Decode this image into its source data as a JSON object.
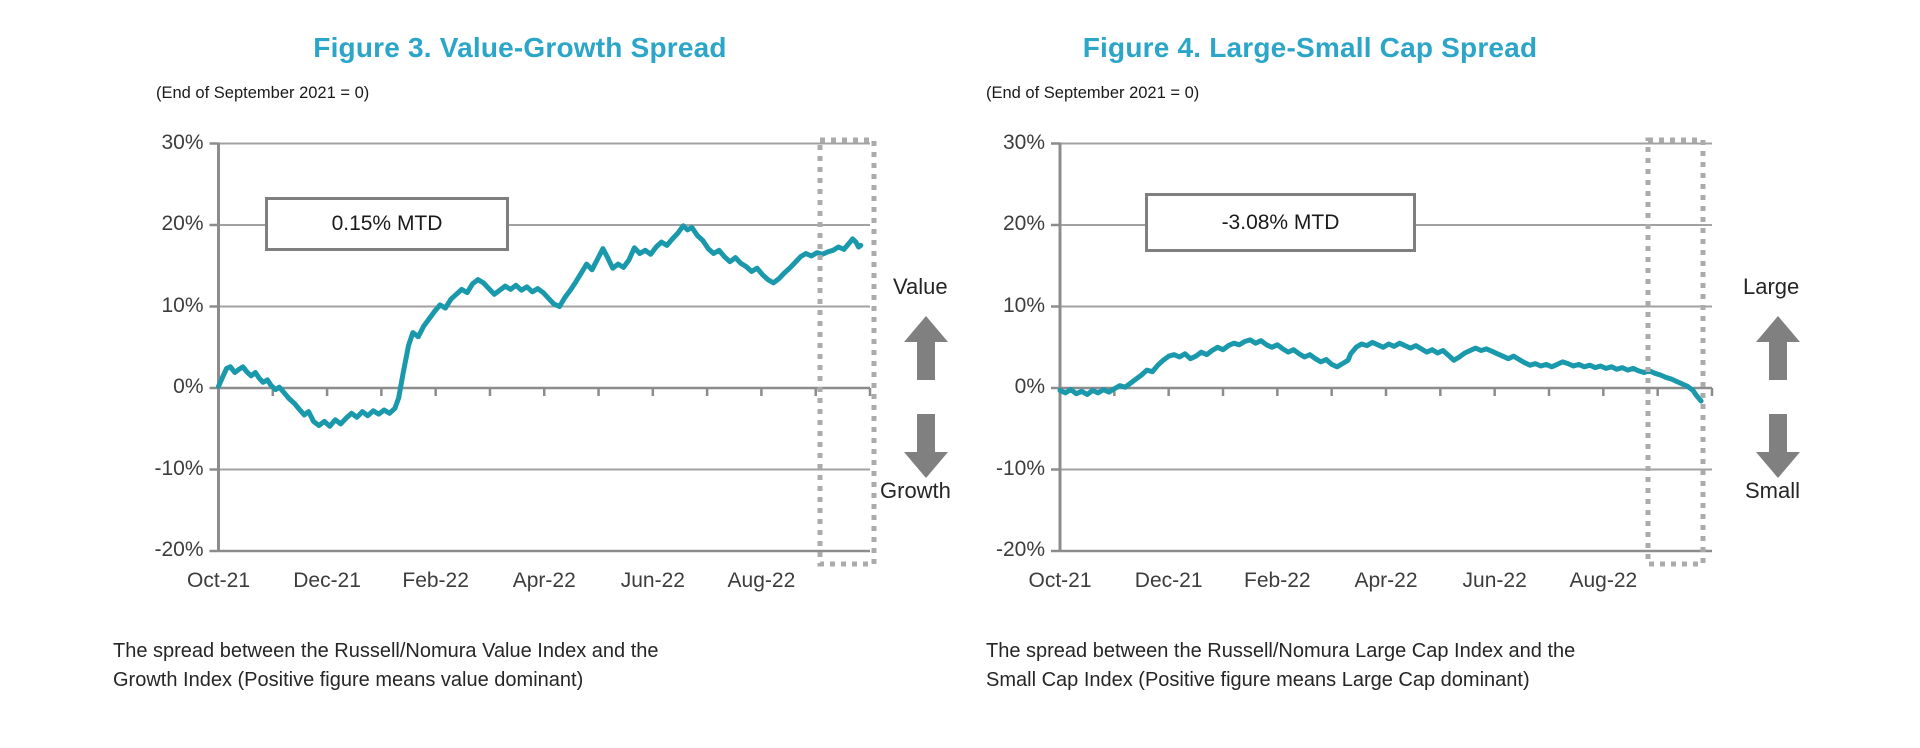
{
  "colors": {
    "title_teal": "#2BA5C8",
    "line_teal": "#1A98AC",
    "grid_gray": "#A2A2A2",
    "axis_gray": "#8C8C8C",
    "annotation_border_gray": "#7F7F7F",
    "dashed_box_gray": "#ABABAB",
    "arrow_gray": "#808080"
  },
  "chart_data": [
    {
      "type": "line",
      "title": "Figure 3. Value-Growth Spread",
      "subtitle": "(End of September 2021 = 0)",
      "annotation": "0.15% MTD",
      "direction_labels": {
        "up": "Value",
        "down": "Growth"
      },
      "caption_line1": "The spread between the Russell/Nomura Value Index and the",
      "caption_line2": "Growth Index (Positive figure means value dominant)",
      "x_tick_labels": [
        "Oct-21",
        "Dec-21",
        "Feb-22",
        "Apr-22",
        "Jun-22",
        "Aug-22"
      ],
      "x_tick_months": [
        0,
        2,
        4,
        6,
        8,
        10
      ],
      "y_tick_labels": [
        "30%",
        "20%",
        "10%",
        "0%",
        "-10%",
        "-20%"
      ],
      "y_tick_values": [
        30,
        20,
        10,
        0,
        -10,
        -20
      ],
      "ylim": [
        -20,
        30
      ],
      "x_range_months": [
        0,
        12
      ],
      "grid": "horizontal",
      "highlight_last_month_box": true,
      "series": [
        {
          "name": "Value-Growth spread (%)",
          "points": [
            [
              0,
              0.2
            ],
            [
              0.08,
              1.4
            ],
            [
              0.15,
              2.4
            ],
            [
              0.22,
              2.6
            ],
            [
              0.3,
              1.9
            ],
            [
              0.38,
              2.3
            ],
            [
              0.45,
              2.6
            ],
            [
              0.52,
              2.0
            ],
            [
              0.6,
              1.5
            ],
            [
              0.68,
              1.9
            ],
            [
              0.75,
              1.2
            ],
            [
              0.82,
              0.7
            ],
            [
              0.9,
              1.0
            ],
            [
              0.97,
              0.3
            ],
            [
              1.05,
              -0.2
            ],
            [
              1.12,
              0.1
            ],
            [
              1.2,
              -0.5
            ],
            [
              1.3,
              -1.3
            ],
            [
              1.4,
              -1.9
            ],
            [
              1.5,
              -2.7
            ],
            [
              1.58,
              -3.3
            ],
            [
              1.66,
              -2.9
            ],
            [
              1.75,
              -4.1
            ],
            [
              1.85,
              -4.6
            ],
            [
              1.95,
              -4.1
            ],
            [
              2.05,
              -4.7
            ],
            [
              2.15,
              -3.9
            ],
            [
              2.25,
              -4.4
            ],
            [
              2.35,
              -3.7
            ],
            [
              2.45,
              -3.1
            ],
            [
              2.55,
              -3.6
            ],
            [
              2.65,
              -2.9
            ],
            [
              2.75,
              -3.4
            ],
            [
              2.85,
              -2.8
            ],
            [
              2.95,
              -3.2
            ],
            [
              3.05,
              -2.7
            ],
            [
              3.15,
              -3.1
            ],
            [
              3.25,
              -2.5
            ],
            [
              3.32,
              -1.2
            ],
            [
              3.4,
              1.8
            ],
            [
              3.5,
              5.2
            ],
            [
              3.58,
              6.8
            ],
            [
              3.68,
              6.3
            ],
            [
              3.78,
              7.6
            ],
            [
              3.88,
              8.5
            ],
            [
              3.98,
              9.4
            ],
            [
              4.08,
              10.2
            ],
            [
              4.18,
              9.8
            ],
            [
              4.28,
              10.9
            ],
            [
              4.38,
              11.5
            ],
            [
              4.48,
              12.1
            ],
            [
              4.58,
              11.7
            ],
            [
              4.68,
              12.8
            ],
            [
              4.78,
              13.3
            ],
            [
              4.88,
              12.9
            ],
            [
              4.98,
              12.2
            ],
            [
              5.08,
              11.5
            ],
            [
              5.18,
              12.0
            ],
            [
              5.28,
              12.5
            ],
            [
              5.38,
              12.1
            ],
            [
              5.48,
              12.6
            ],
            [
              5.58,
              12.0
            ],
            [
              5.68,
              12.4
            ],
            [
              5.78,
              11.8
            ],
            [
              5.88,
              12.2
            ],
            [
              5.98,
              11.7
            ],
            [
              6.08,
              11.0
            ],
            [
              6.18,
              10.3
            ],
            [
              6.28,
              10.0
            ],
            [
              6.38,
              11.1
            ],
            [
              6.48,
              12.0
            ],
            [
              6.58,
              13.0
            ],
            [
              6.68,
              14.1
            ],
            [
              6.78,
              15.2
            ],
            [
              6.88,
              14.5
            ],
            [
              6.98,
              15.8
            ],
            [
              7.08,
              17.1
            ],
            [
              7.16,
              16.1
            ],
            [
              7.26,
              14.7
            ],
            [
              7.36,
              15.2
            ],
            [
              7.46,
              14.8
            ],
            [
              7.56,
              15.7
            ],
            [
              7.66,
              17.2
            ],
            [
              7.76,
              16.5
            ],
            [
              7.86,
              16.9
            ],
            [
              7.96,
              16.4
            ],
            [
              8.06,
              17.3
            ],
            [
              8.16,
              17.9
            ],
            [
              8.26,
              17.5
            ],
            [
              8.36,
              18.3
            ],
            [
              8.46,
              19.0
            ],
            [
              8.56,
              19.9
            ],
            [
              8.64,
              19.4
            ],
            [
              8.72,
              19.7
            ],
            [
              8.82,
              18.7
            ],
            [
              8.92,
              18.1
            ],
            [
              9.02,
              17.1
            ],
            [
              9.12,
              16.5
            ],
            [
              9.22,
              16.9
            ],
            [
              9.32,
              16.1
            ],
            [
              9.42,
              15.5
            ],
            [
              9.52,
              16.0
            ],
            [
              9.62,
              15.3
            ],
            [
              9.72,
              14.9
            ],
            [
              9.82,
              14.3
            ],
            [
              9.92,
              14.7
            ],
            [
              10.02,
              13.9
            ],
            [
              10.12,
              13.3
            ],
            [
              10.22,
              12.9
            ],
            [
              10.32,
              13.4
            ],
            [
              10.42,
              14.1
            ],
            [
              10.52,
              14.7
            ],
            [
              10.62,
              15.4
            ],
            [
              10.72,
              16.1
            ],
            [
              10.82,
              16.5
            ],
            [
              10.92,
              16.2
            ],
            [
              11.02,
              16.6
            ],
            [
              11.12,
              16.4
            ],
            [
              11.22,
              16.7
            ],
            [
              11.32,
              16.9
            ],
            [
              11.42,
              17.3
            ],
            [
              11.52,
              17.0
            ],
            [
              11.62,
              17.8
            ],
            [
              11.68,
              18.3
            ],
            [
              11.74,
              17.9
            ],
            [
              11.79,
              17.3
            ],
            [
              11.83,
              17.5
            ]
          ]
        }
      ]
    },
    {
      "type": "line",
      "title": "Figure 4. Large-Small Cap Spread",
      "subtitle": "(End of September 2021 = 0)",
      "annotation": "-3.08% MTD",
      "direction_labels": {
        "up": "Large",
        "down": "Small"
      },
      "caption_line1": "The spread between the Russell/Nomura Large Cap Index and the",
      "caption_line2": "Small Cap Index (Positive figure means Large Cap dominant)",
      "x_tick_labels": [
        "Oct-21",
        "Dec-21",
        "Feb-22",
        "Apr-22",
        "Jun-22",
        "Aug-22"
      ],
      "x_tick_months": [
        0,
        2,
        4,
        6,
        8,
        10
      ],
      "y_tick_labels": [
        "30%",
        "20%",
        "10%",
        "0%",
        "-10%",
        "-20%"
      ],
      "y_tick_values": [
        30,
        20,
        10,
        0,
        -10,
        -20
      ],
      "ylim": [
        -20,
        30
      ],
      "x_range_months": [
        0,
        12
      ],
      "grid": "horizontal",
      "highlight_last_month_box": true,
      "series": [
        {
          "name": "Large-Small cap spread (%)",
          "points": [
            [
              0,
              -0.3
            ],
            [
              0.1,
              -0.6
            ],
            [
              0.2,
              -0.2
            ],
            [
              0.3,
              -0.7
            ],
            [
              0.4,
              -0.4
            ],
            [
              0.5,
              -0.8
            ],
            [
              0.6,
              -0.3
            ],
            [
              0.7,
              -0.6
            ],
            [
              0.8,
              -0.2
            ],
            [
              0.9,
              -0.5
            ],
            [
              1.0,
              -0.1
            ],
            [
              1.1,
              0.3
            ],
            [
              1.2,
              0.1
            ],
            [
              1.3,
              0.6
            ],
            [
              1.4,
              1.1
            ],
            [
              1.5,
              1.6
            ],
            [
              1.6,
              2.2
            ],
            [
              1.7,
              2.0
            ],
            [
              1.8,
              2.8
            ],
            [
              1.9,
              3.4
            ],
            [
              2.0,
              3.9
            ],
            [
              2.1,
              4.1
            ],
            [
              2.2,
              3.8
            ],
            [
              2.3,
              4.2
            ],
            [
              2.4,
              3.6
            ],
            [
              2.5,
              3.9
            ],
            [
              2.6,
              4.4
            ],
            [
              2.7,
              4.1
            ],
            [
              2.8,
              4.6
            ],
            [
              2.9,
              5.0
            ],
            [
              3.0,
              4.7
            ],
            [
              3.1,
              5.2
            ],
            [
              3.2,
              5.5
            ],
            [
              3.3,
              5.3
            ],
            [
              3.4,
              5.7
            ],
            [
              3.5,
              5.9
            ],
            [
              3.6,
              5.5
            ],
            [
              3.7,
              5.8
            ],
            [
              3.8,
              5.3
            ],
            [
              3.9,
              5.0
            ],
            [
              4.0,
              5.3
            ],
            [
              4.1,
              4.8
            ],
            [
              4.2,
              4.4
            ],
            [
              4.3,
              4.7
            ],
            [
              4.4,
              4.2
            ],
            [
              4.5,
              3.8
            ],
            [
              4.6,
              4.1
            ],
            [
              4.7,
              3.6
            ],
            [
              4.8,
              3.2
            ],
            [
              4.9,
              3.5
            ],
            [
              5.0,
              2.9
            ],
            [
              5.1,
              2.6
            ],
            [
              5.2,
              3.0
            ],
            [
              5.3,
              3.4
            ],
            [
              5.35,
              4.2
            ],
            [
              5.45,
              5.0
            ],
            [
              5.55,
              5.4
            ],
            [
              5.65,
              5.2
            ],
            [
              5.75,
              5.6
            ],
            [
              5.85,
              5.3
            ],
            [
              5.95,
              5.0
            ],
            [
              6.05,
              5.4
            ],
            [
              6.15,
              5.1
            ],
            [
              6.25,
              5.5
            ],
            [
              6.35,
              5.2
            ],
            [
              6.45,
              4.9
            ],
            [
              6.55,
              5.2
            ],
            [
              6.65,
              4.8
            ],
            [
              6.75,
              4.4
            ],
            [
              6.85,
              4.7
            ],
            [
              6.95,
              4.3
            ],
            [
              7.05,
              4.6
            ],
            [
              7.15,
              4.0
            ],
            [
              7.25,
              3.4
            ],
            [
              7.35,
              3.8
            ],
            [
              7.45,
              4.3
            ],
            [
              7.55,
              4.6
            ],
            [
              7.65,
              4.9
            ],
            [
              7.75,
              4.6
            ],
            [
              7.85,
              4.8
            ],
            [
              7.95,
              4.5
            ],
            [
              8.05,
              4.2
            ],
            [
              8.15,
              3.9
            ],
            [
              8.25,
              3.6
            ],
            [
              8.35,
              3.9
            ],
            [
              8.45,
              3.5
            ],
            [
              8.55,
              3.1
            ],
            [
              8.65,
              2.8
            ],
            [
              8.75,
              3.0
            ],
            [
              8.85,
              2.7
            ],
            [
              8.95,
              2.9
            ],
            [
              9.05,
              2.6
            ],
            [
              9.15,
              2.9
            ],
            [
              9.25,
              3.2
            ],
            [
              9.35,
              3.0
            ],
            [
              9.45,
              2.7
            ],
            [
              9.55,
              2.9
            ],
            [
              9.65,
              2.6
            ],
            [
              9.75,
              2.8
            ],
            [
              9.85,
              2.5
            ],
            [
              9.95,
              2.7
            ],
            [
              10.05,
              2.4
            ],
            [
              10.15,
              2.6
            ],
            [
              10.25,
              2.3
            ],
            [
              10.35,
              2.5
            ],
            [
              10.45,
              2.2
            ],
            [
              10.55,
              2.4
            ],
            [
              10.65,
              2.1
            ],
            [
              10.75,
              1.9
            ],
            [
              10.85,
              2.1
            ],
            [
              10.95,
              1.8
            ],
            [
              11.05,
              1.6
            ],
            [
              11.15,
              1.3
            ],
            [
              11.25,
              1.1
            ],
            [
              11.35,
              0.8
            ],
            [
              11.45,
              0.5
            ],
            [
              11.55,
              0.2
            ],
            [
              11.65,
              -0.3
            ],
            [
              11.7,
              -0.8
            ],
            [
              11.75,
              -1.2
            ],
            [
              11.8,
              -1.6
            ]
          ]
        }
      ]
    }
  ]
}
